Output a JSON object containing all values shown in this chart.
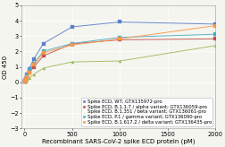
{
  "title": "",
  "xlabel": "Recombinant SARS-CoV-2 spike ECD protein (pM)",
  "ylabel": "OD 450",
  "xlim": [
    -30,
    2000
  ],
  "ylim": [
    -3.0,
    5.0
  ],
  "yticks": [
    -3.0,
    -2.0,
    -1.0,
    0.0,
    1.0,
    2.0,
    3.0,
    4.0,
    5.0
  ],
  "xticks": [
    0,
    500,
    1000,
    1500,
    2000
  ],
  "series": [
    {
      "label": "Spike ECD, WT; GTX135972-pro",
      "color": "#5B7EC9",
      "marker": "s",
      "x_data": [
        3.125,
        6.25,
        12.5,
        25,
        50,
        100,
        200,
        500,
        1000,
        2000
      ],
      "y_data": [
        0.07,
        0.12,
        0.22,
        0.52,
        0.88,
        1.52,
        2.52,
        3.6,
        3.92,
        3.78
      ]
    },
    {
      "label": "Spike ECD, B.1.1.7 / alpha variant; GTX136059-pro",
      "color": "#C0504D",
      "marker": "s",
      "x_data": [
        3.125,
        6.25,
        12.5,
        25,
        50,
        100,
        200,
        500,
        1000,
        2000
      ],
      "y_data": [
        0.04,
        0.08,
        0.15,
        0.35,
        0.65,
        1.0,
        1.72,
        2.5,
        2.76,
        2.82
      ]
    },
    {
      "label": "Spike ECD, B.1.351 / beta variant; GTX136061-pro",
      "color": "#9BBB59",
      "marker": "^",
      "x_data": [
        3.125,
        6.25,
        12.5,
        25,
        50,
        100,
        200,
        500,
        1000,
        2000
      ],
      "y_data": [
        0.02,
        0.04,
        0.07,
        0.14,
        0.28,
        0.52,
        0.92,
        1.32,
        1.38,
        2.38
      ]
    },
    {
      "label": "Spike ECD, P.1 / gamma variant; GTX136090-pro",
      "color": "#4BACC6",
      "marker": "s",
      "x_data": [
        3.125,
        6.25,
        12.5,
        25,
        50,
        100,
        200,
        500,
        1000,
        2000
      ],
      "y_data": [
        0.05,
        0.1,
        0.2,
        0.44,
        0.8,
        1.22,
        2.02,
        2.52,
        2.92,
        3.12
      ]
    },
    {
      "label": "Spike ECD, B.1.617.2 / delta variant; GTX136435-pro",
      "color": "#F79646",
      "marker": "s",
      "x_data": [
        3.125,
        6.25,
        12.5,
        25,
        50,
        100,
        200,
        500,
        1000,
        2000
      ],
      "y_data": [
        0.04,
        0.08,
        0.15,
        0.35,
        0.65,
        1.15,
        1.92,
        2.42,
        2.82,
        3.68
      ]
    }
  ],
  "background_color": "#f5f5f0",
  "plot_bg_color": "#f5f5f0",
  "grid_color": "#ffffff",
  "legend_fontsize": 3.8,
  "axis_fontsize": 5.0,
  "tick_fontsize": 4.8
}
